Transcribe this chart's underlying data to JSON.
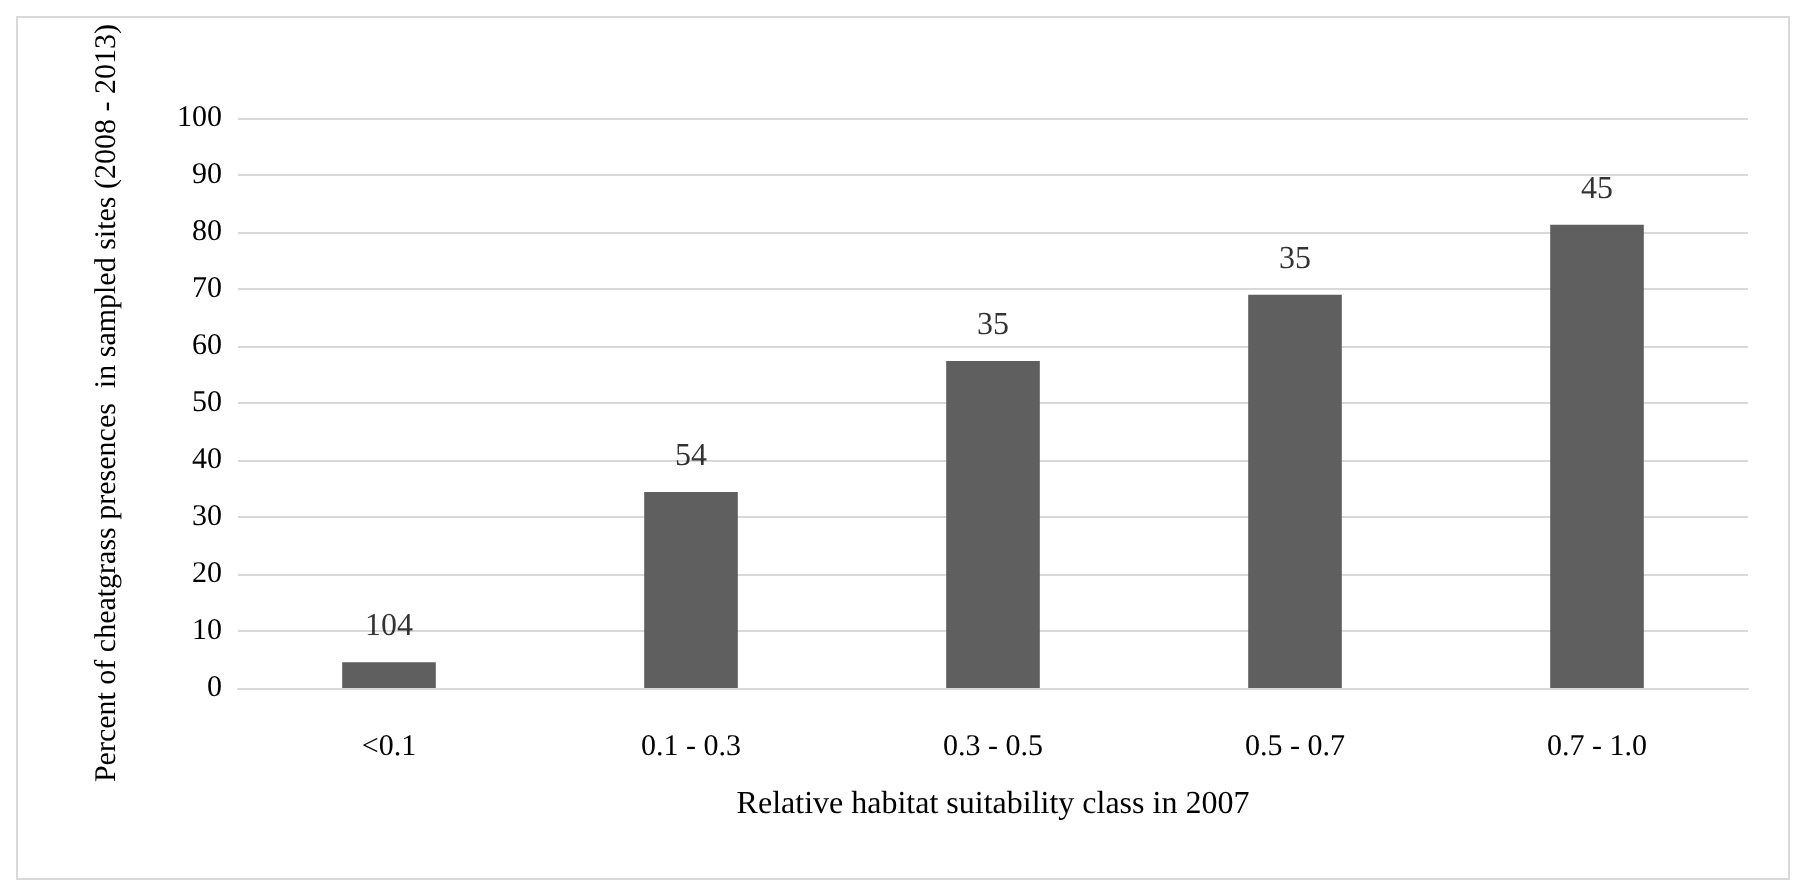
{
  "chart_data": {
    "type": "bar",
    "xlabel": "Relative habitat suitability class in 2007",
    "ylabel": "Percent of cheatgrass presences  in sampled sites (2008 - 2013)",
    "categories": [
      "<0.1",
      "0.1 - 0.3",
      "0.3 - 0.5",
      "0.5 - 0.7",
      "0.7 - 1.0"
    ],
    "values": [
      4.5,
      34.4,
      57.4,
      69.0,
      81.3
    ],
    "annotations": [
      {
        "text": "104",
        "x": "<0.1",
        "y": 4.5
      },
      {
        "text": "54",
        "x": "0.1 - 0.3",
        "y": 34.4
      },
      {
        "text": "35",
        "x": "0.3 - 0.5",
        "y": 57.4
      },
      {
        "text": "35",
        "x": "0.5 - 0.7",
        "y": 69.0
      },
      {
        "text": "45",
        "x": "0.7 - 1.0",
        "y": 81.3
      }
    ],
    "color": "#5f5f5f",
    "ylim": [
      0,
      100
    ],
    "yticks": [
      0,
      10,
      20,
      30,
      40,
      50,
      60,
      70,
      80,
      90,
      100
    ],
    "grid": "y"
  }
}
